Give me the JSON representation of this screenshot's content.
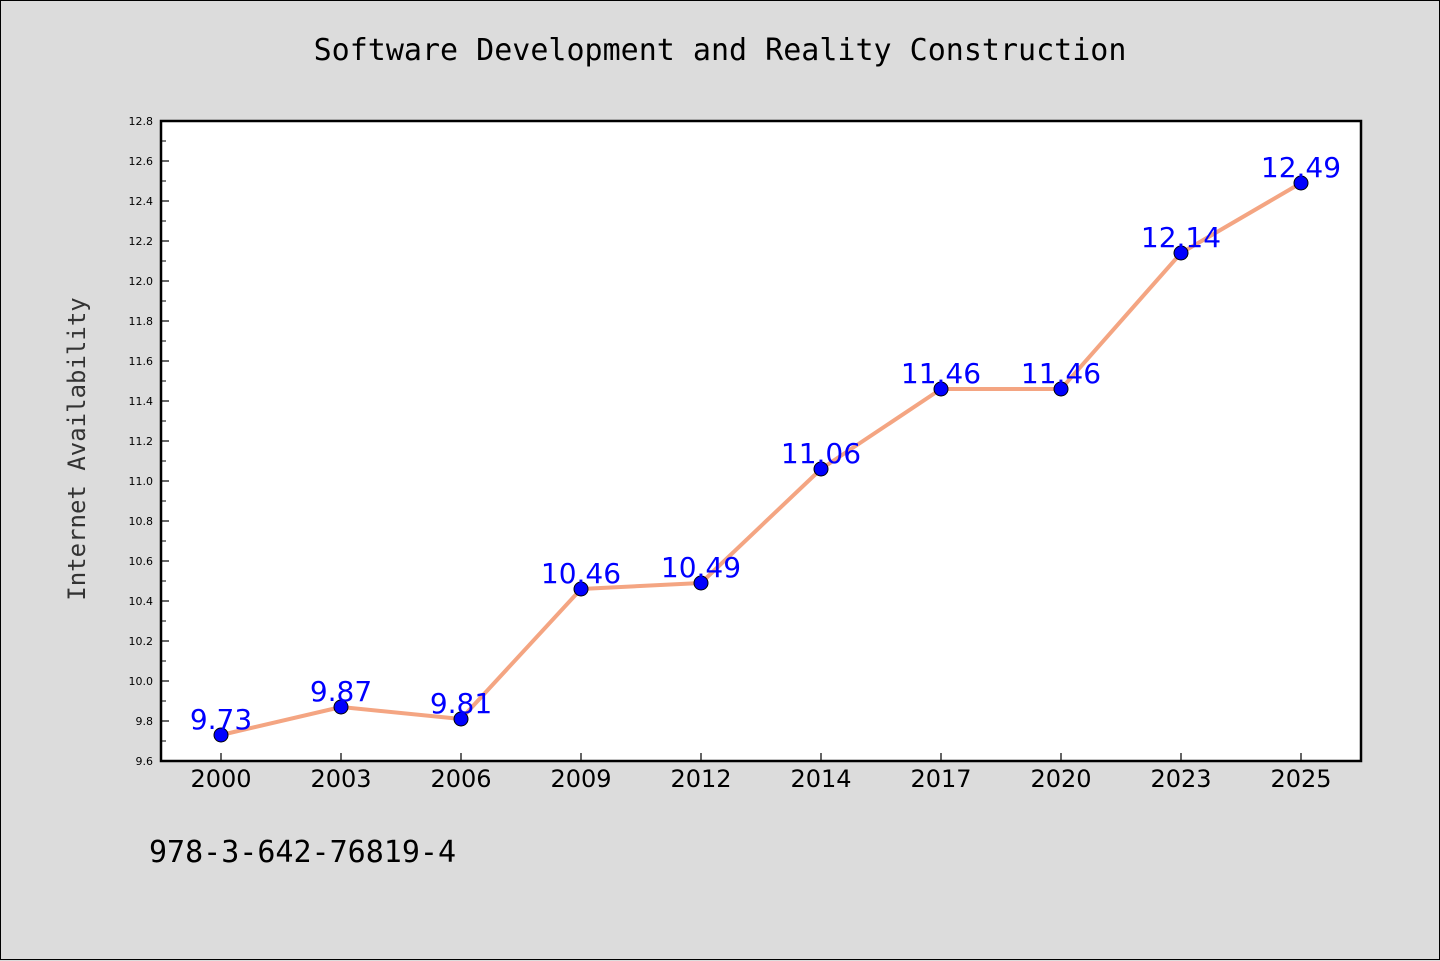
{
  "chart_data": {
    "type": "line",
    "title": "Software Development and Reality Construction",
    "xlabel": "",
    "ylabel": "Internet Availability",
    "categories": [
      "2000",
      "2003",
      "2006",
      "2009",
      "2012",
      "2014",
      "2017",
      "2020",
      "2023",
      "2025"
    ],
    "series": [
      {
        "values": [
          9.73,
          9.87,
          9.81,
          10.46,
          10.49,
          11.06,
          11.46,
          11.46,
          12.14,
          12.49
        ]
      }
    ],
    "data_labels": [
      "9.73",
      "9.87",
      "9.81",
      "10.46",
      "10.49",
      "11.06",
      "11.46",
      "11.46",
      "12.14",
      "12.49"
    ],
    "ylim": [
      9.6,
      12.8
    ],
    "yticks": [
      "9.6",
      "9.8",
      "10.0",
      "10.2",
      "10.4",
      "10.6",
      "10.8",
      "11.0",
      "11.2",
      "11.4",
      "11.6",
      "11.8",
      "12.0",
      "12.2",
      "12.4",
      "12.6",
      "12.8"
    ],
    "grid": false,
    "colors": {
      "line": "#f4a582",
      "marker": "#0000ff",
      "label": "#0000ff",
      "background": "#dcdcdc",
      "plot_background": "#ffffff"
    }
  },
  "footnote": "978-3-642-76819-4"
}
